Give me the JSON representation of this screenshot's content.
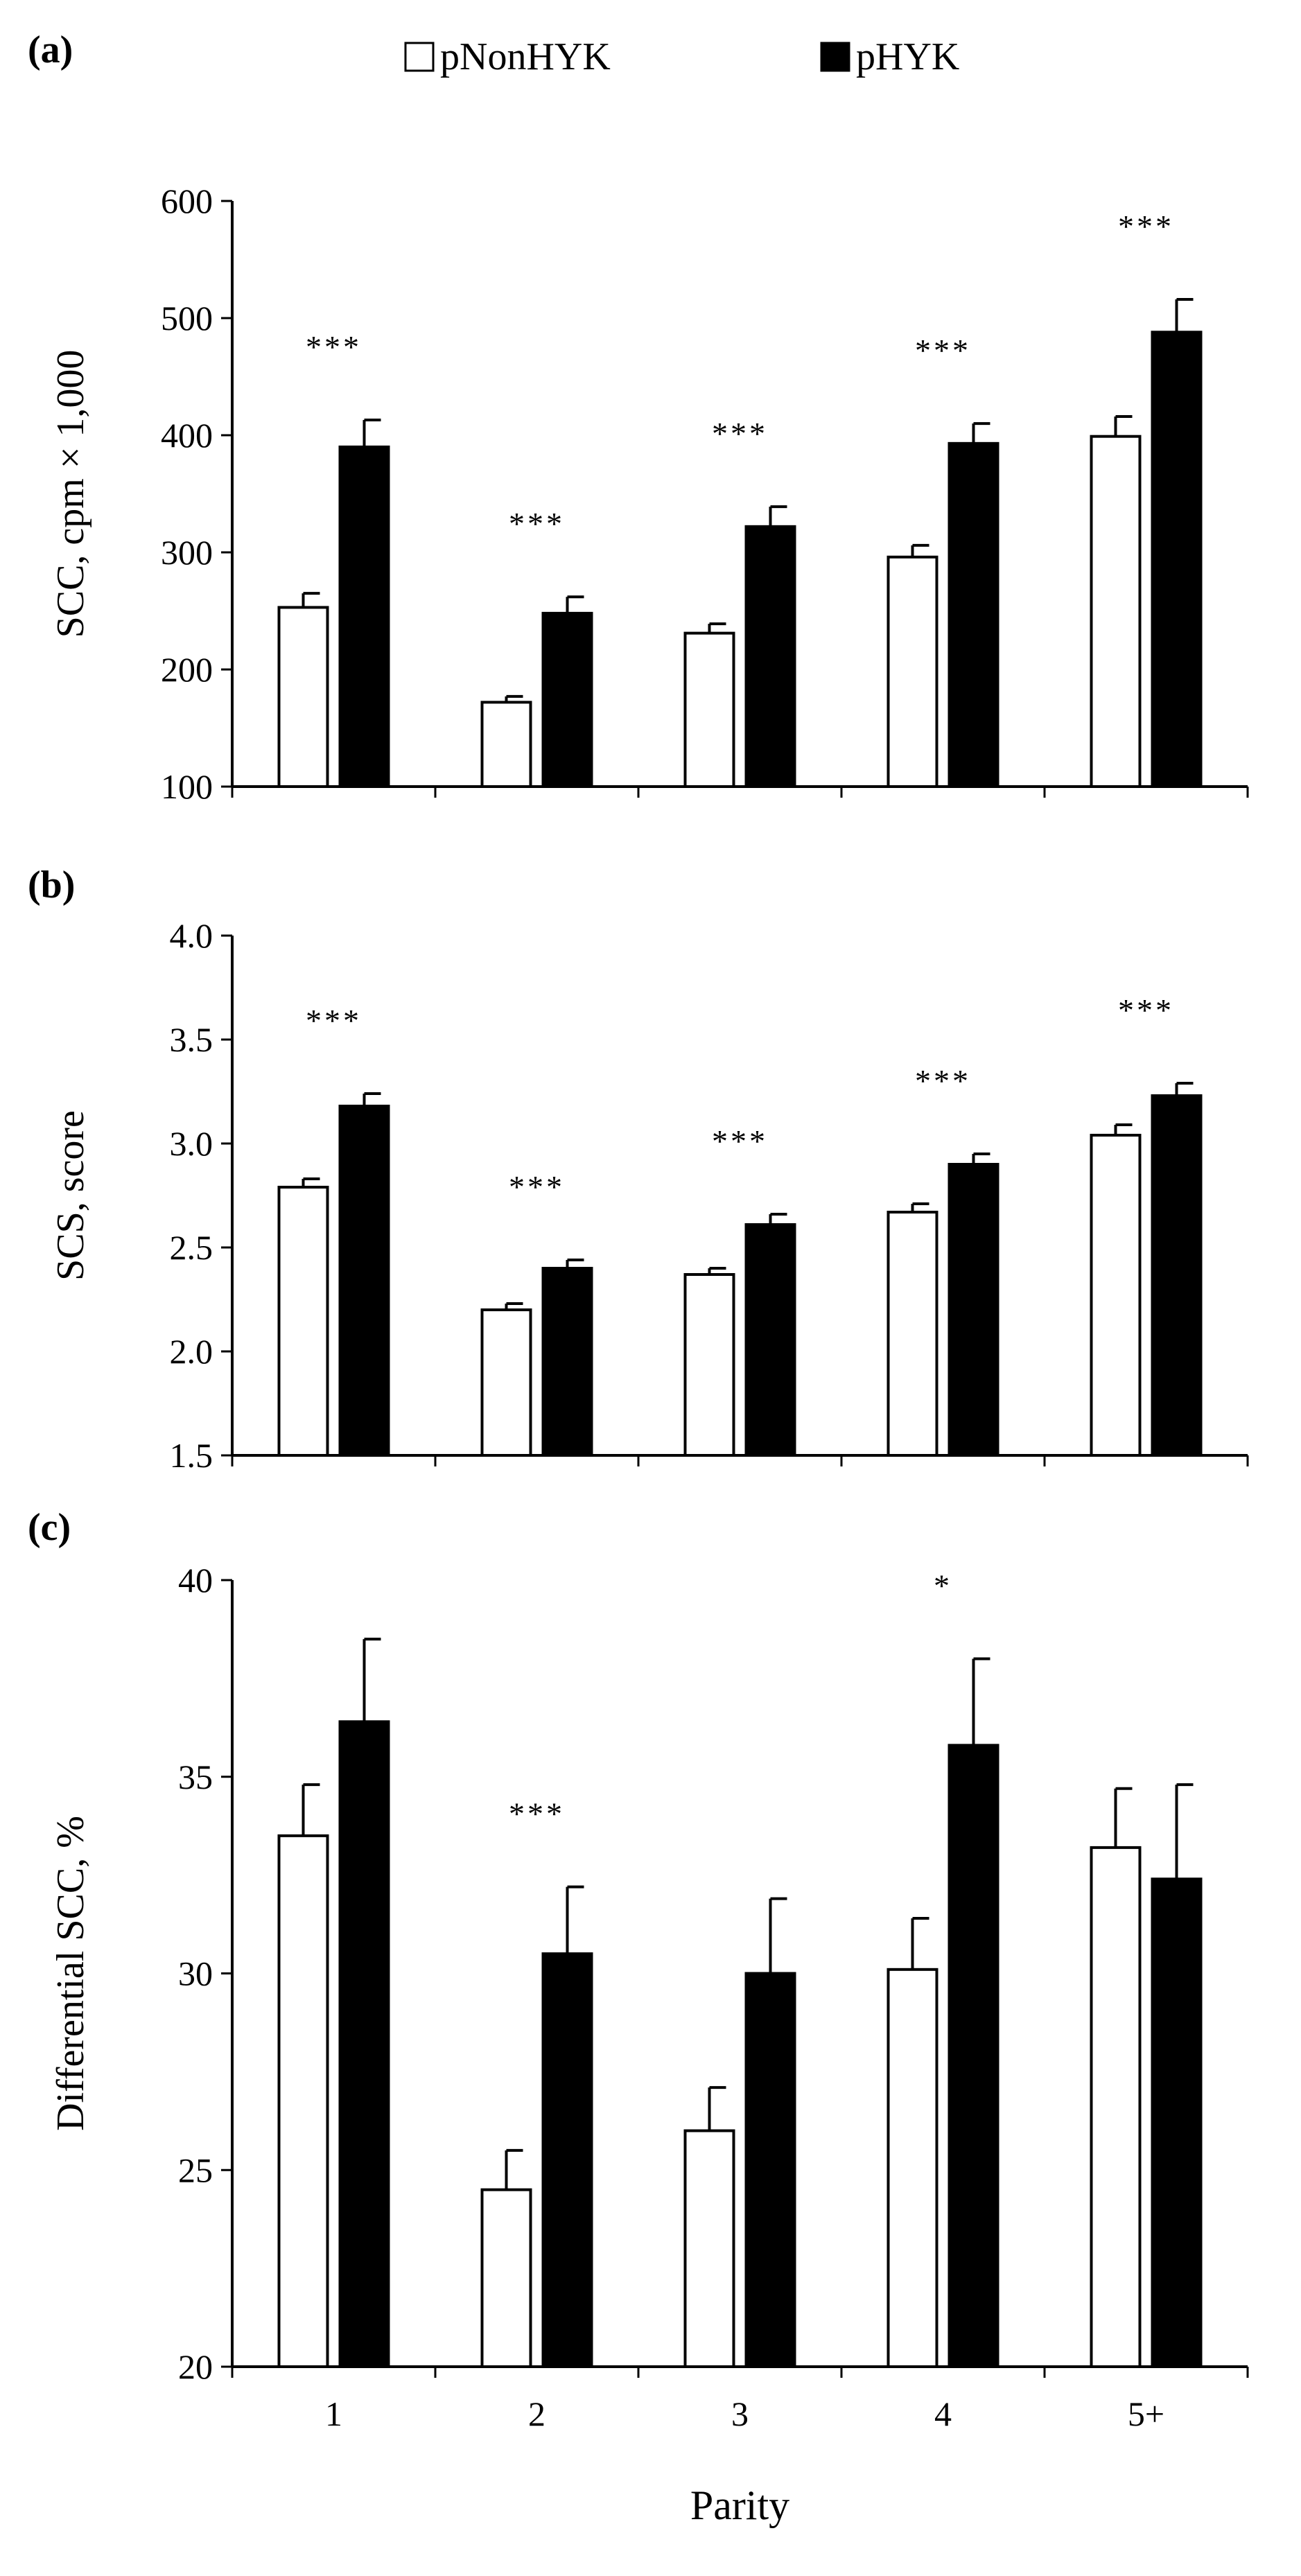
{
  "legend": {
    "items": [
      {
        "label": "pNonHYK",
        "color": "#ffffff"
      },
      {
        "label": "pHYK",
        "color": "#000000"
      }
    ]
  },
  "chart_data": [
    {
      "type": "bar",
      "panel_label": "(a)",
      "categories": [
        "1",
        "2",
        "3",
        "4",
        "5+"
      ],
      "ylabel": "SCC, cpm × 1,000",
      "xlabel": "",
      "ylim": [
        100,
        600
      ],
      "yticks": [
        100,
        200,
        300,
        400,
        500,
        600
      ],
      "ytick_labels": [
        "100",
        "200",
        "300",
        "400",
        "500",
        "600"
      ],
      "series": [
        {
          "name": "pNonHYK",
          "color": "#ffffff",
          "values": [
            253,
            172,
            231,
            296,
            399
          ],
          "errors": [
            12,
            5,
            8,
            10,
            17
          ]
        },
        {
          "name": "pHYK",
          "color": "#000000",
          "values": [
            390,
            248,
            322,
            393,
            488
          ],
          "errors": [
            23,
            14,
            17,
            17,
            28
          ]
        }
      ],
      "significance": [
        "***",
        "***",
        "***",
        "***",
        "***"
      ]
    },
    {
      "type": "bar",
      "panel_label": "(b)",
      "categories": [
        "1",
        "2",
        "3",
        "4",
        "5+"
      ],
      "ylabel": "SCS, score",
      "xlabel": "",
      "ylim": [
        1.5,
        4.0
      ],
      "yticks": [
        1.5,
        2.0,
        2.5,
        3.0,
        3.5,
        4.0
      ],
      "ytick_labels": [
        "1.5",
        "2.0",
        "2.5",
        "3.0",
        "3.5",
        "4.0"
      ],
      "series": [
        {
          "name": "pNonHYK",
          "color": "#ffffff",
          "values": [
            2.79,
            2.2,
            2.37,
            2.67,
            3.04
          ],
          "errors": [
            0.04,
            0.03,
            0.03,
            0.04,
            0.05
          ]
        },
        {
          "name": "pHYK",
          "color": "#000000",
          "values": [
            3.18,
            2.4,
            2.61,
            2.9,
            3.23
          ],
          "errors": [
            0.06,
            0.04,
            0.05,
            0.05,
            0.06
          ]
        }
      ],
      "significance": [
        "***",
        "***",
        "***",
        "***",
        "***"
      ]
    },
    {
      "type": "bar",
      "panel_label": "(c)",
      "categories": [
        "1",
        "2",
        "3",
        "4",
        "5+"
      ],
      "ylabel": "Differential SCC, %",
      "xlabel": "Parity",
      "ylim": [
        20,
        40
      ],
      "yticks": [
        20,
        25,
        30,
        35,
        40
      ],
      "ytick_labels": [
        "20",
        "25",
        "30",
        "35",
        "40"
      ],
      "series": [
        {
          "name": "pNonHYK",
          "color": "#ffffff",
          "values": [
            33.5,
            24.5,
            26.0,
            30.1,
            33.2
          ],
          "errors": [
            1.3,
            1.0,
            1.1,
            1.3,
            1.5
          ]
        },
        {
          "name": "pHYK",
          "color": "#000000",
          "values": [
            36.4,
            30.5,
            30.0,
            35.8,
            32.4
          ],
          "errors": [
            2.1,
            1.7,
            1.9,
            2.2,
            2.4
          ]
        }
      ],
      "significance": [
        "",
        "***",
        "",
        "*",
        ""
      ]
    }
  ]
}
